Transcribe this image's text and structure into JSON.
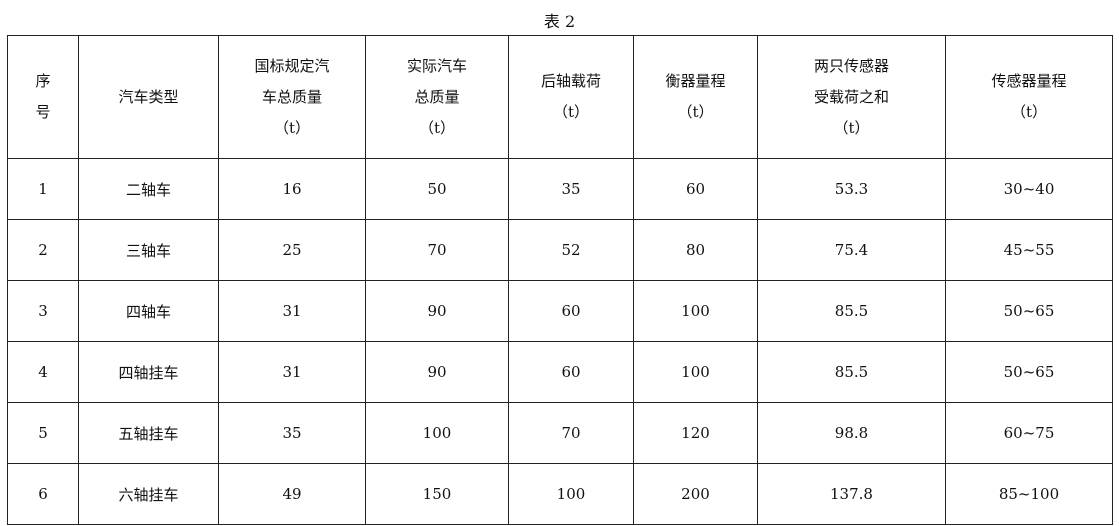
{
  "caption": "表 2",
  "headers": [
    [
      "序",
      "号"
    ],
    [
      "汽车类型"
    ],
    [
      "国标规定汽",
      "车总质量",
      "（t）"
    ],
    [
      "实际汽车",
      "总质量",
      "（t）"
    ],
    [
      "后轴载荷",
      "（t）"
    ],
    [
      "衡器量程",
      "（t）"
    ],
    [
      "两只传感器",
      "受载荷之和",
      "（t）"
    ],
    [
      "传感器量程",
      "（t）"
    ]
  ],
  "rows": [
    [
      "1",
      "二轴车",
      "16",
      "50",
      "35",
      "60",
      "53.3",
      "30~40"
    ],
    [
      "2",
      "三轴车",
      "25",
      "70",
      "52",
      "80",
      "75.4",
      "45~55"
    ],
    [
      "3",
      "四轴车",
      "31",
      "90",
      "60",
      "100",
      "85.5",
      "50~65"
    ],
    [
      "4",
      "四轴挂车",
      "31",
      "90",
      "60",
      "100",
      "85.5",
      "50~65"
    ],
    [
      "5",
      "五轴挂车",
      "35",
      "100",
      "70",
      "120",
      "98.8",
      "60~75"
    ],
    [
      "6",
      "六轴挂车",
      "49",
      "150",
      "100",
      "200",
      "137.8",
      "85~100"
    ]
  ]
}
